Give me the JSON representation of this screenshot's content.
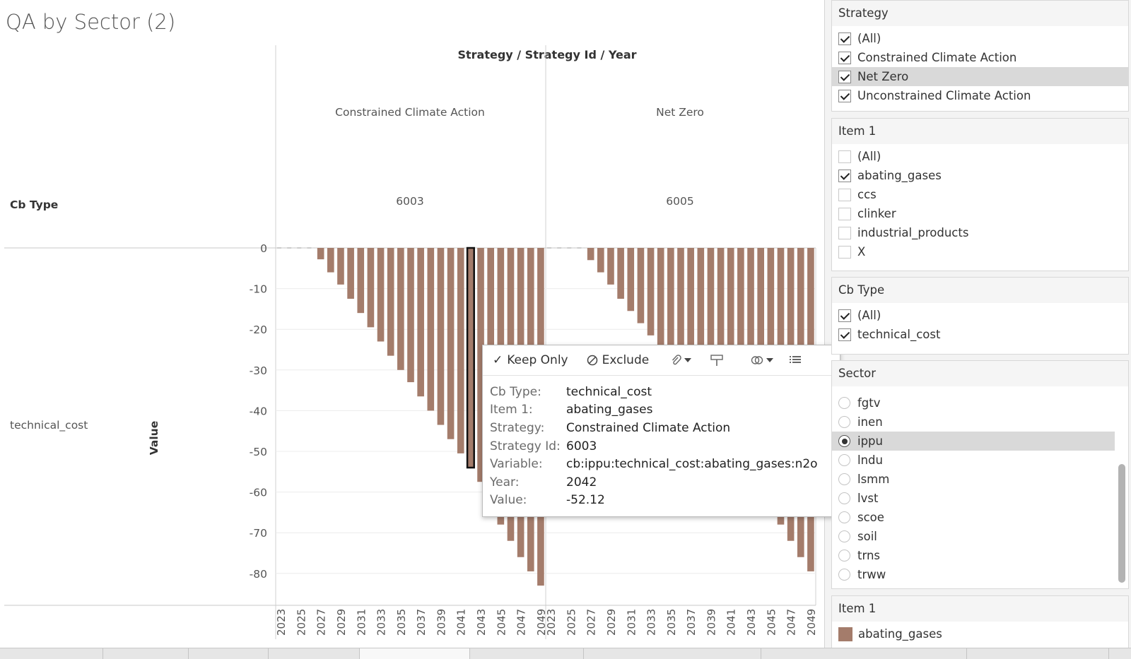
{
  "title": "QA by Sector (2)",
  "column_header": "Strategy / Strategy Id / Year",
  "row_header": "Cb Type",
  "panes": [
    {
      "strategy": "Constrained Climate Action",
      "strategy_id": "6003"
    },
    {
      "strategy": "Net Zero",
      "strategy_id": "6005"
    }
  ],
  "row_label": "technical_cost",
  "value_axis_title": "Value",
  "chart_data": {
    "type": "bar",
    "x_label_years": [
      2023,
      2025,
      2027,
      2029,
      2031,
      2033,
      2035,
      2037,
      2039,
      2041,
      2043,
      2045,
      2047,
      2049
    ],
    "years": [
      2023,
      2024,
      2025,
      2026,
      2027,
      2028,
      2029,
      2030,
      2031,
      2032,
      2033,
      2034,
      2035,
      2036,
      2037,
      2038,
      2039,
      2040,
      2041,
      2042,
      2043,
      2044,
      2045,
      2046,
      2047,
      2048,
      2049
    ],
    "ylim": [
      -85,
      0
    ],
    "y_ticks": [
      0,
      -10,
      -20,
      -30,
      -40,
      -50,
      -60,
      -70,
      -80
    ],
    "bar_color": "#a47c6b",
    "selected": {
      "pane": 0,
      "year": 2042
    },
    "series": [
      {
        "name": "Constrained Climate Action",
        "values": [
          0,
          0,
          0,
          0,
          -2.8,
          -6,
          -9,
          -12.5,
          -16,
          -19.5,
          -23,
          -26.5,
          -30,
          -33,
          -36.5,
          -40,
          -43.5,
          -47,
          -50.5,
          -54,
          -57.5,
          -61,
          -68,
          -72,
          -76,
          -79.5,
          -83
        ]
      },
      {
        "name": "Net Zero",
        "values": [
          0,
          0,
          0,
          0,
          -3,
          -6,
          -9,
          -12.5,
          -15.5,
          -18.5,
          -21.5,
          -26,
          -30,
          -33,
          -36,
          -40,
          -43,
          -47,
          -50.5,
          -54,
          -57.5,
          -61,
          -64.5,
          -68,
          -72,
          -76,
          -79.5
        ]
      }
    ]
  },
  "tooltip": {
    "actions": {
      "keep_only": "Keep Only",
      "exclude": "Exclude"
    },
    "fields": [
      {
        "key": "Cb Type:",
        "value": "technical_cost"
      },
      {
        "key": "Item 1:",
        "value": "abating_gases"
      },
      {
        "key": "Strategy:",
        "value": "Constrained Climate Action"
      },
      {
        "key": "Strategy Id:",
        "value": "6003"
      },
      {
        "key": "Variable:",
        "value": "cb:ippu:technical_cost:abating_gases:n2o"
      },
      {
        "key": "Year:",
        "value": "2042"
      },
      {
        "key": "Value:",
        "value": "-52.12"
      }
    ]
  },
  "filters": {
    "strategy": {
      "title": "Strategy",
      "items": [
        {
          "label": "(All)",
          "checked": true
        },
        {
          "label": "Constrained Climate Action",
          "checked": true
        },
        {
          "label": "Net Zero",
          "checked": true,
          "highlight": true
        },
        {
          "label": "Unconstrained Climate Action",
          "checked": true
        }
      ]
    },
    "item1": {
      "title": "Item 1",
      "items": [
        {
          "label": "(All)",
          "checked": false
        },
        {
          "label": "abating_gases",
          "checked": true
        },
        {
          "label": "ccs",
          "checked": false
        },
        {
          "label": "clinker",
          "checked": false
        },
        {
          "label": "industrial_products",
          "checked": false
        },
        {
          "label": "X",
          "checked": false
        }
      ]
    },
    "cbtype": {
      "title": "Cb Type",
      "items": [
        {
          "label": "(All)",
          "checked": true
        },
        {
          "label": "technical_cost",
          "checked": true
        }
      ]
    },
    "sector": {
      "title": "Sector",
      "items": [
        {
          "label": "fgtv",
          "selected": false
        },
        {
          "label": "inen",
          "selected": false
        },
        {
          "label": "ippu",
          "selected": true
        },
        {
          "label": "lndu",
          "selected": false
        },
        {
          "label": "lsmm",
          "selected": false
        },
        {
          "label": "lvst",
          "selected": false
        },
        {
          "label": "scoe",
          "selected": false
        },
        {
          "label": "soil",
          "selected": false
        },
        {
          "label": "trns",
          "selected": false
        },
        {
          "label": "trww",
          "selected": false
        }
      ]
    },
    "legend": {
      "title": "Item 1",
      "items": [
        {
          "label": "abating_gases",
          "color": "#a47c6b"
        }
      ]
    }
  }
}
